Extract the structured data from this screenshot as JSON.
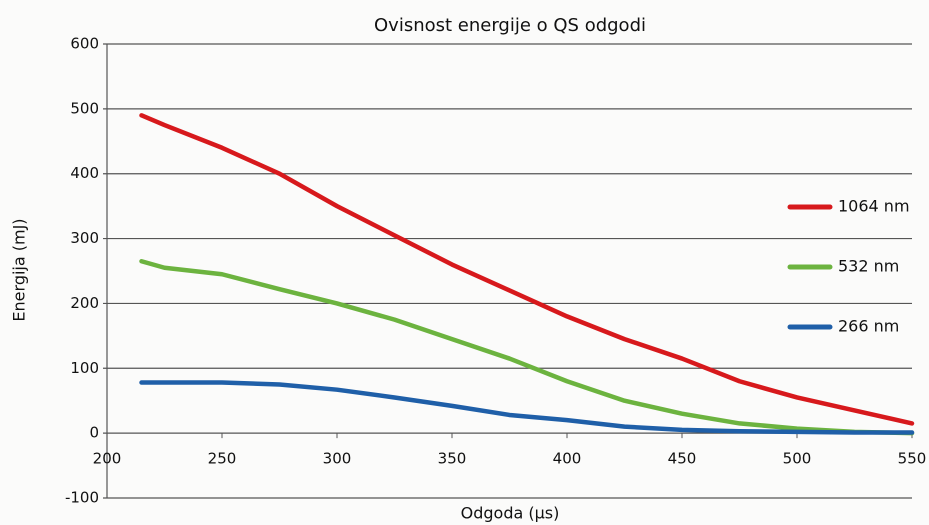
{
  "chart_data": {
    "type": "line",
    "title": "Ovisnost energije o QS odgodi",
    "xlabel": "Odgoda (µs)",
    "ylabel": "Energija (mJ)",
    "x": [
      215,
      225,
      250,
      275,
      300,
      325,
      350,
      375,
      400,
      425,
      450,
      475,
      500,
      525,
      550
    ],
    "series": [
      {
        "name": "1064 nm",
        "color": "#d7191c",
        "values": [
          490,
          475,
          440,
          400,
          350,
          305,
          260,
          220,
          180,
          145,
          115,
          80,
          55,
          35,
          15
        ]
      },
      {
        "name": "532 nm",
        "color": "#6cb33f",
        "values": [
          265,
          255,
          245,
          222,
          200,
          175,
          145,
          115,
          80,
          50,
          30,
          15,
          7,
          2,
          0
        ]
      },
      {
        "name": "266 nm",
        "color": "#1f5fa8",
        "values": [
          78,
          78,
          78,
          75,
          67,
          55,
          42,
          28,
          20,
          10,
          5,
          3,
          2,
          1,
          1
        ]
      }
    ],
    "xlim": [
      200,
      550
    ],
    "ylim": [
      -100,
      600
    ],
    "xticks": [
      200,
      250,
      300,
      350,
      400,
      450,
      500,
      550
    ],
    "yticks": [
      -100,
      0,
      100,
      200,
      300,
      400,
      500,
      600
    ],
    "grid": true,
    "legend": "right"
  }
}
